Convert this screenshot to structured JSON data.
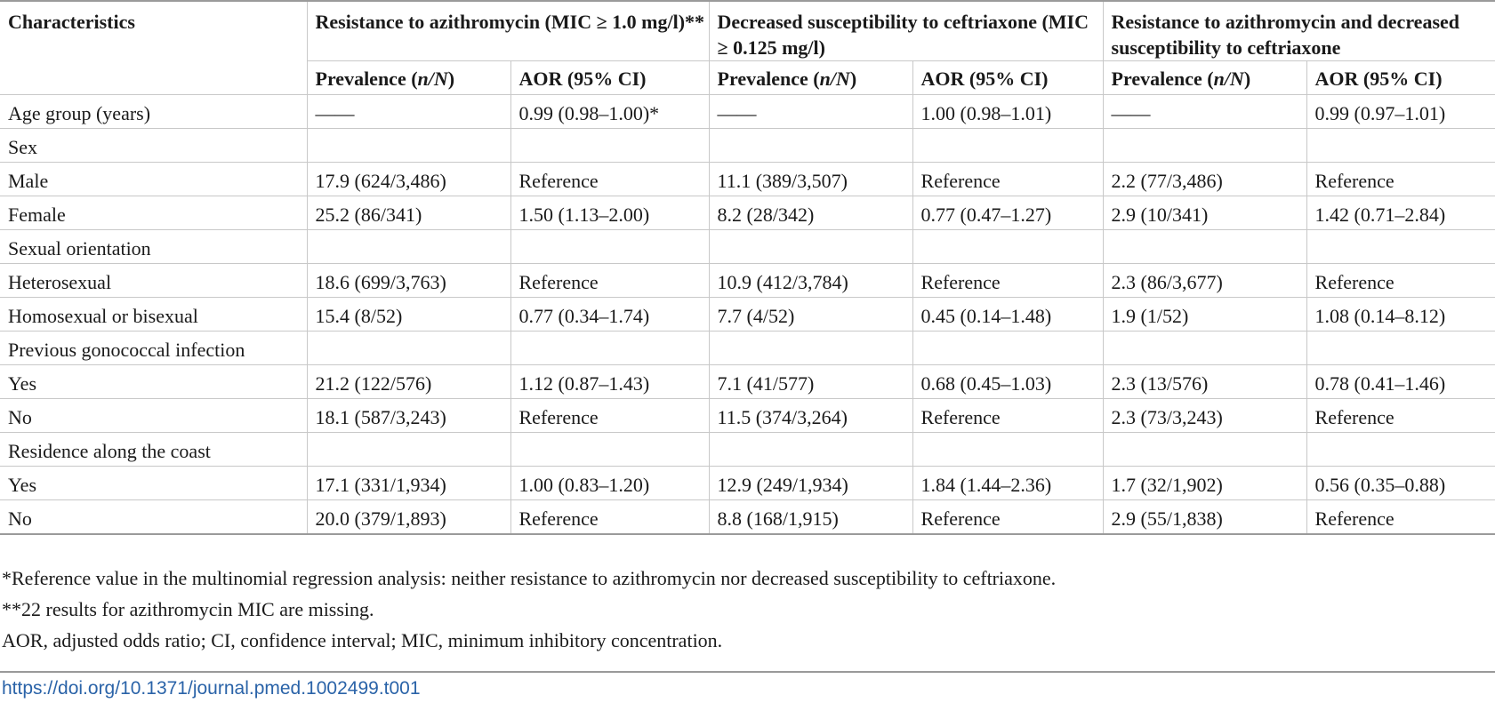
{
  "table": {
    "header_row1": [
      "Characteristics",
      "Resistance to azithromycin (MIC ≥ 1.0 mg/l)**",
      "Decreased susceptibility to ceftriaxone (MIC ≥ 0.125 mg/l)",
      "Resistance to azithromycin and decreased susceptibility to ceftriaxone"
    ],
    "prevalence_label": "Prevalence (",
    "n_over_N": "n/N",
    "prevalence_close": ")",
    "aor_label": "AOR (95% CI)",
    "rows": [
      [
        "Age group (years)",
        "——",
        "0.99 (0.98–1.00)*",
        "——",
        "1.00 (0.98–1.01)",
        "——",
        "0.99 (0.97–1.01)"
      ],
      [
        "Sex",
        "",
        "",
        "",
        "",
        "",
        ""
      ],
      [
        "Male",
        "17.9 (624/3,486)",
        "Reference",
        "11.1 (389/3,507)",
        "Reference",
        "2.2 (77/3,486)",
        "Reference"
      ],
      [
        "Female",
        "25.2 (86/341)",
        "1.50 (1.13–2.00)",
        "8.2 (28/342)",
        "0.77 (0.47–1.27)",
        "2.9 (10/341)",
        "1.42 (0.71–2.84)"
      ],
      [
        "Sexual orientation",
        "",
        "",
        "",
        "",
        "",
        ""
      ],
      [
        "Heterosexual",
        "18.6 (699/3,763)",
        "Reference",
        "10.9 (412/3,784)",
        "Reference",
        "2.3 (86/3,677)",
        "Reference"
      ],
      [
        "Homosexual or bisexual",
        "15.4 (8/52)",
        "0.77 (0.34–1.74)",
        "7.7 (4/52)",
        "0.45 (0.14–1.48)",
        "1.9 (1/52)",
        "1.08 (0.14–8.12)"
      ],
      [
        "Previous gonococcal infection",
        "",
        "",
        "",
        "",
        "",
        ""
      ],
      [
        "Yes",
        "21.2 (122/576)",
        "1.12 (0.87–1.43)",
        "7.1 (41/577)",
        "0.68 (0.45–1.03)",
        "2.3 (13/576)",
        "0.78 (0.41–1.46)"
      ],
      [
        "No",
        "18.1 (587/3,243)",
        "Reference",
        "11.5 (374/3,264)",
        "Reference",
        "2.3 (73/3,243)",
        "Reference"
      ],
      [
        "Residence along the coast",
        "",
        "",
        "",
        "",
        "",
        ""
      ],
      [
        "Yes",
        "17.1 (331/1,934)",
        "1.00 (0.83–1.20)",
        "12.9 (249/1,934)",
        "1.84 (1.44–2.36)",
        "1.7 (32/1,902)",
        "0.56 (0.35–0.88)"
      ],
      [
        "No",
        "20.0 (379/1,893)",
        "Reference",
        "8.8 (168/1,915)",
        "Reference",
        "2.9 (55/1,838)",
        "Reference"
      ]
    ]
  },
  "footnotes": [
    "*Reference value in the multinomial regression analysis: neither resistance to azithromycin nor decreased susceptibility to ceftriaxone.",
    "**22 results for azithromycin MIC are missing.",
    "AOR, adjusted odds ratio; CI, confidence interval; MIC, minimum inhibitory concentration."
  ],
  "doi": "https://doi.org/10.1371/journal.pmed.1002499.t001"
}
